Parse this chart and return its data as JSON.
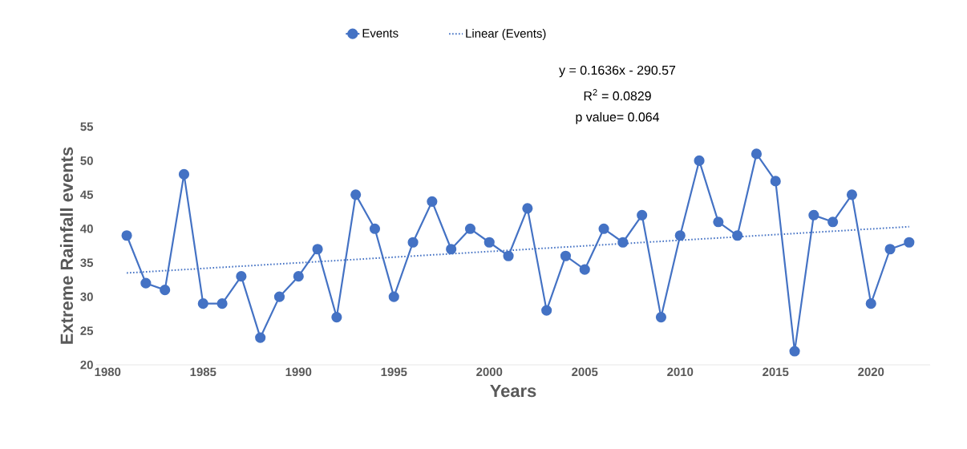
{
  "chart_data": {
    "type": "line",
    "xlabel": "Years",
    "ylabel": "Extreme Rainfall events",
    "xlim": [
      1979.4,
      2023.1
    ],
    "xticks": [
      1980,
      1985,
      1990,
      1995,
      2000,
      2005,
      2010,
      2015,
      2020
    ],
    "ylim": [
      20,
      55
    ],
    "yticks": [
      20,
      25,
      30,
      35,
      40,
      45,
      50,
      55
    ],
    "legend": "top",
    "grid": false,
    "annotations": [
      "y = 0.1636x - 290.57",
      "R$^{2}$ = 0.0829",
      "p value= 0.064"
    ],
    "series": [
      {
        "name": "Events",
        "color": "#4472c4",
        "marker": "circle",
        "line_style": "solid",
        "x": [
          1981,
          1982,
          1983,
          1984,
          1985,
          1986,
          1987,
          1988,
          1989,
          1990,
          1991,
          1992,
          1993,
          1994,
          1995,
          1996,
          1997,
          1998,
          1999,
          2000,
          2001,
          2002,
          2003,
          2004,
          2005,
          2006,
          2007,
          2008,
          2009,
          2010,
          2011,
          2012,
          2013,
          2014,
          2015,
          2016,
          2017,
          2018,
          2019,
          2020,
          2021,
          2022
        ],
        "values": [
          39,
          32,
          31,
          48,
          29,
          29,
          33,
          24,
          30,
          33,
          37,
          27,
          45,
          40,
          30,
          38,
          44,
          37,
          40,
          38,
          36,
          43,
          28,
          36,
          34,
          40,
          38,
          42,
          27,
          39,
          50,
          41,
          39,
          51,
          47,
          22,
          42,
          41,
          45,
          29,
          37,
          38
        ]
      },
      {
        "name": "Linear (Events)",
        "color": "#4472c4",
        "marker": "none",
        "line_style": "dotted",
        "x": [
          1981,
          2022
        ],
        "values": [
          33.5,
          40.3
        ]
      }
    ]
  }
}
